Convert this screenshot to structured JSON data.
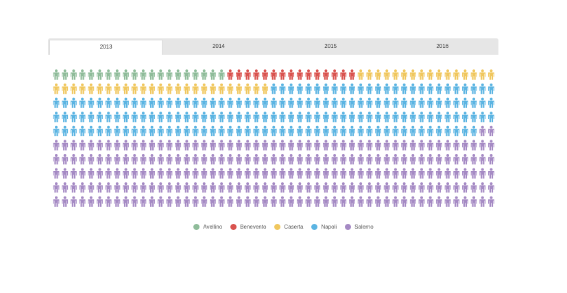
{
  "tabs": [
    {
      "label": "2013",
      "active": true
    },
    {
      "label": "2014",
      "active": false
    },
    {
      "label": "2015",
      "active": false
    },
    {
      "label": "2016",
      "active": false
    }
  ],
  "chart_data": {
    "type": "pictogram-waffle",
    "title": "",
    "selected_period": "2013",
    "icon": "person-icon",
    "grid": {
      "rows": 10,
      "columns": 51
    },
    "legend_position": "bottom",
    "series": [
      {
        "name": "Avellino",
        "icons": 20,
        "color": "#8fbc9a"
      },
      {
        "name": "Benevento",
        "icons": 15,
        "color": "#d9534f"
      },
      {
        "name": "Caserta",
        "icons": 41,
        "color": "#f0c75e"
      },
      {
        "name": "Napoli",
        "icons": 177,
        "color": "#5bb4e2"
      },
      {
        "name": "Salerno",
        "icons": 257,
        "color": "#a58ac4"
      }
    ]
  }
}
